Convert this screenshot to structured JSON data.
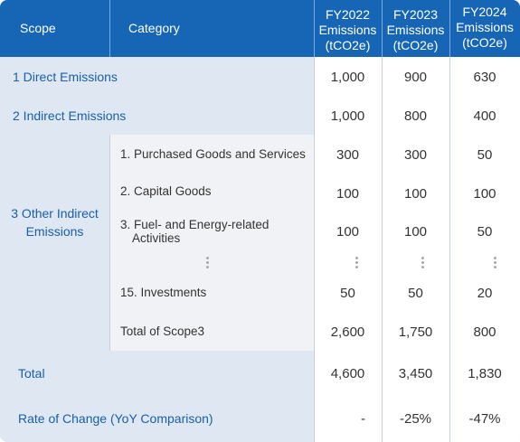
{
  "header": {
    "scope": "Scope",
    "category": "Category",
    "fy2022": [
      "FY2022",
      "Emissions",
      "(tCO2e)"
    ],
    "fy2023": [
      "FY2023",
      "Emissions",
      "(tCO2e)"
    ],
    "fy2024": [
      "FY2024",
      "Emissions",
      "(tCO2e)"
    ]
  },
  "rows": {
    "scope1": {
      "label": "1 Direct Emissions",
      "values": [
        "1,000",
        "900",
        "630"
      ]
    },
    "scope2": {
      "label": "2 Indirect Emissions",
      "values": [
        "1,000",
        "800",
        "400"
      ]
    },
    "scope3": {
      "label_line1": "3 Other Indirect",
      "label_line2": "Emissions",
      "categories": [
        {
          "label": "1. Purchased Goods and Services",
          "values": [
            "300",
            "300",
            "50"
          ]
        },
        {
          "label": "2. Capital Goods",
          "values": [
            "100",
            "100",
            "100"
          ]
        },
        {
          "label_line1": "3. Fuel- and Energy-related",
          "label_line2": "Activities",
          "values": [
            "100",
            "100",
            "50"
          ]
        },
        {
          "label": "15. Investments",
          "values": [
            "50",
            "50",
            "20"
          ]
        },
        {
          "label": "Total of Scope3",
          "values": [
            "2,600",
            "1,750",
            "800"
          ]
        }
      ]
    },
    "total": {
      "label": "Total",
      "values": [
        "4,600",
        "3,450",
        "1,830"
      ]
    },
    "rate": {
      "label": "Rate of Change (YoY Comparison)",
      "values": [
        "-",
        "-25%",
        "-47%"
      ]
    }
  },
  "colors": {
    "header_bg": "#1666b5",
    "scope_text": "#1a5fa8",
    "blue_cell": "#dfe7f3",
    "gray_cell": "#f1f2f5"
  }
}
